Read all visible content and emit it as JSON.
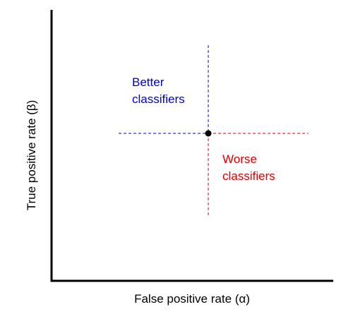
{
  "axes": {
    "x_label": "False positive rate (α)",
    "y_label": "True positive rate (β)"
  },
  "regions": {
    "better": {
      "lines": [
        "Better",
        "classifiers"
      ],
      "color": "#0000cc"
    },
    "worse": {
      "lines": [
        "Worse",
        "classifiers"
      ],
      "color": "#e00000"
    }
  },
  "colors": {
    "axis": "#000000",
    "point": "#000000"
  }
}
